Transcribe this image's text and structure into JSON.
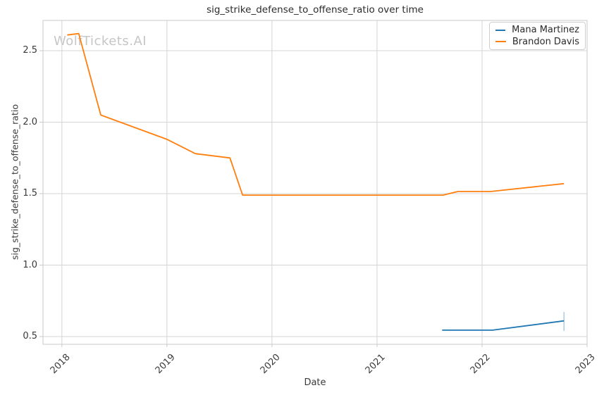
{
  "chart_data": {
    "type": "line",
    "title": "sig_strike_defense_to_offense_ratio over time",
    "xlabel": "Date",
    "ylabel": "sig_strike_defense_to_offense_ratio",
    "watermark": "WolfTickets.AI",
    "x_range": [
      2017.82,
      2023.0
    ],
    "y_range": [
      0.446,
      2.712
    ],
    "x_ticks": [
      2018,
      2019,
      2020,
      2021,
      2022,
      2023
    ],
    "y_ticks": [
      "0.5",
      "1.0",
      "1.5",
      "2.0",
      "2.5"
    ],
    "grid": true,
    "legend_position": "upper right",
    "colors": {
      "grid": "#d4d4d4",
      "spine": "#c9c9c9",
      "tick": "#c9c9c9",
      "error_bar": "#a3c9e3"
    },
    "series": [
      {
        "name": "Mana Martinez",
        "color": "#1f77b4",
        "points": [
          [
            2021.62,
            0.545
          ],
          [
            2022.1,
            0.545
          ],
          [
            2022.78,
            0.61
          ]
        ],
        "error_bar_last": [
          0.54,
          0.672
        ]
      },
      {
        "name": "Brandon Davis",
        "color": "#ff7f0e",
        "points": [
          [
            2018.05,
            2.61
          ],
          [
            2018.16,
            2.62
          ],
          [
            2018.37,
            2.05
          ],
          [
            2019.0,
            1.88
          ],
          [
            2019.27,
            1.78
          ],
          [
            2019.6,
            1.75
          ],
          [
            2019.72,
            1.49
          ],
          [
            2021.63,
            1.49
          ],
          [
            2021.77,
            1.515
          ],
          [
            2022.08,
            1.515
          ],
          [
            2022.78,
            1.57
          ]
        ]
      }
    ]
  }
}
